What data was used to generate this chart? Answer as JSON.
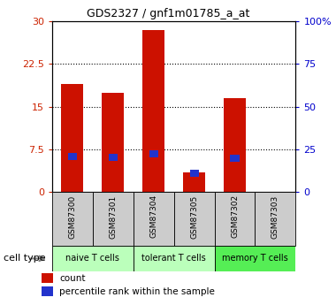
{
  "title": "GDS2327 / gnf1m01785_a_at",
  "samples": [
    "GSM87300",
    "GSM87301",
    "GSM87304",
    "GSM87305",
    "GSM87302",
    "GSM87303"
  ],
  "count_values": [
    19.0,
    17.5,
    28.5,
    3.5,
    16.5,
    0.0
  ],
  "percentile_values": [
    21.0,
    20.5,
    22.5,
    11.0,
    20.0,
    0.0
  ],
  "ylim_left": [
    0,
    30
  ],
  "ylim_right": [
    0,
    100
  ],
  "yticks_left": [
    0,
    7.5,
    15,
    22.5,
    30
  ],
  "yticks_right": [
    0,
    25,
    50,
    75,
    100
  ],
  "ytick_labels_left": [
    "0",
    "7.5",
    "15",
    "22.5",
    "30"
  ],
  "ytick_labels_right": [
    "0",
    "25",
    "50",
    "75",
    "100%"
  ],
  "bar_color": "#cc1100",
  "blue_color": "#2233cc",
  "bar_width": 0.55,
  "blue_bar_width": 0.22,
  "blue_bar_height": 1.2,
  "left_tick_color": "#cc2200",
  "right_tick_color": "#0000cc",
  "cell_groups": [
    {
      "label": "naive T cells",
      "start": 0,
      "end": 2,
      "color": "#bbffbb"
    },
    {
      "label": "tolerant T cells",
      "start": 2,
      "end": 4,
      "color": "#bbffbb"
    },
    {
      "label": "memory T cells",
      "start": 4,
      "end": 6,
      "color": "#55ee55"
    }
  ],
  "sample_box_color": "#cccccc",
  "grid_yticks": [
    7.5,
    15,
    22.5
  ]
}
